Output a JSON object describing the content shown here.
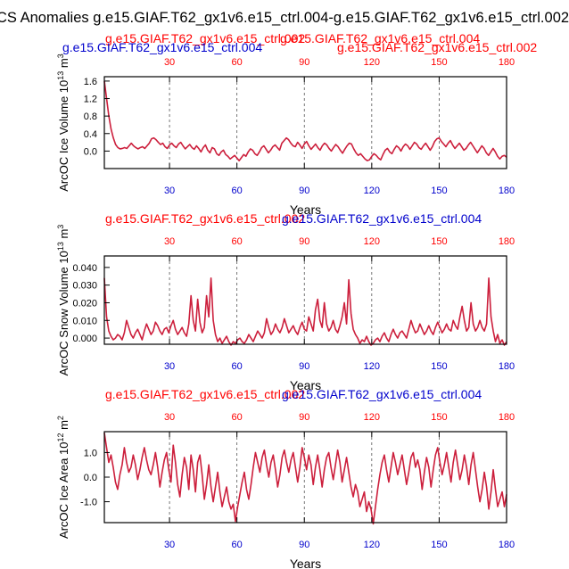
{
  "suptitle": "CS Anomalies g.e15.GIAF.T62_gx1v6.e15_ctrl.004-g.e15.GIAF.T62_gx1v6.e15_ctrl.002",
  "colors": {
    "red": "#ff0000",
    "blue": "#0000cc",
    "line": "#cc1f3c",
    "black": "#000000"
  },
  "chart_data": [
    {
      "type": "line",
      "title_left": "g.e15.GIAF.T62_gx1v6.e15_ctrl.004",
      "title_left_back": "g.e15.GIAF.T62_gx1v6.e15_ctrl.002",
      "title_right": "g.e15.GIAF.T62_gx1v6.e15_ctrl.002",
      "title_right_back": "g.e15.GIAF.T62_gx1v6.e15_ctrl.004",
      "ylabel": "ArcOC Ice Volume 10",
      "ylabel_exp": "13",
      "ylabel_unit": " m",
      "ylabel_unit_exp": "3",
      "xlabel": "Years",
      "xlim": [
        1,
        180
      ],
      "ylim": [
        -0.4,
        1.7
      ],
      "yticks": [
        -0.0,
        0.4,
        0.8,
        1.2,
        1.6
      ],
      "ytick_labels": [
        "0.0",
        "0.4",
        "0.8",
        "1.2",
        "1.6"
      ],
      "xticks": [
        30,
        60,
        90,
        120,
        150,
        180
      ],
      "xtick_labels": [
        "30",
        "60",
        "90",
        "120",
        "150",
        "180"
      ],
      "vlines": [
        30,
        60,
        90,
        120,
        150
      ],
      "top_label_color": "red",
      "bottom_label_color": "blue",
      "series": [
        {
          "name": "ArcOC Ice Volume",
          "values": [
            1.6,
            1.2,
            0.8,
            0.5,
            0.3,
            0.15,
            0.08,
            0.05,
            0.06,
            0.08,
            0.06,
            0.12,
            0.18,
            0.12,
            0.08,
            0.05,
            0.08,
            0.1,
            0.06,
            0.12,
            0.18,
            0.28,
            0.3,
            0.26,
            0.2,
            0.15,
            0.18,
            0.1,
            0.06,
            0.14,
            0.18,
            0.12,
            0.08,
            0.16,
            0.2,
            0.12,
            0.05,
            0.1,
            0.15,
            0.08,
            0.04,
            0.12,
            0.06,
            -0.02,
            0.08,
            0.14,
            0.02,
            -0.04,
            0.08,
            0.05,
            -0.06,
            -0.1,
            -0.02,
            0.02,
            -0.08,
            -0.12,
            -0.18,
            -0.14,
            -0.1,
            -0.16,
            -0.22,
            -0.15,
            -0.08,
            -0.12,
            -0.02,
            0.05,
            0.02,
            -0.06,
            -0.1,
            -0.02,
            0.08,
            0.12,
            0.04,
            -0.04,
            0.02,
            0.1,
            0.14,
            0.08,
            0.02,
            0.18,
            0.24,
            0.3,
            0.26,
            0.18,
            0.12,
            0.1,
            0.2,
            0.14,
            0.06,
            0.16,
            0.22,
            0.12,
            0.04,
            0.1,
            0.16,
            0.08,
            0.02,
            0.12,
            0.18,
            0.14,
            0.06,
            0.0,
            0.08,
            0.15,
            0.1,
            0.02,
            -0.05,
            0.04,
            0.12,
            0.18,
            0.16,
            0.05,
            -0.04,
            -0.1,
            -0.06,
            -0.12,
            -0.18,
            -0.22,
            -0.2,
            -0.12,
            -0.06,
            -0.1,
            -0.16,
            -0.2,
            -0.08,
            0.02,
            0.06,
            -0.02,
            -0.06,
            0.04,
            0.12,
            0.08,
            0.0,
            0.1,
            0.16,
            0.12,
            0.04,
            0.12,
            0.2,
            0.16,
            0.08,
            0.04,
            0.12,
            0.18,
            0.1,
            0.02,
            0.1,
            0.22,
            0.28,
            0.3,
            0.22,
            0.16,
            0.1,
            0.18,
            0.24,
            0.14,
            0.06,
            0.12,
            0.18,
            0.1,
            0.02,
            0.06,
            0.14,
            0.2,
            0.12,
            0.04,
            -0.04,
            0.04,
            0.12,
            0.06,
            -0.04,
            -0.1,
            -0.02,
            0.06,
            -0.02,
            -0.12,
            -0.18,
            -0.12,
            -0.1,
            -0.14
          ]
        }
      ]
    },
    {
      "type": "line",
      "title_left": "g.e15.GIAF.T62_gx1v6.e15_ctrl.002",
      "title_right": "g.e15.GIAF.T62_gx1v6.e15_ctrl.004",
      "ylabel": "ArcOC Snow Volume 10",
      "ylabel_exp": "13",
      "ylabel_unit": " m",
      "ylabel_unit_exp": "3",
      "xlabel": "Years",
      "xlim": [
        1,
        180
      ],
      "ylim": [
        -0.0035,
        0.0465
      ],
      "yticks": [
        0.0,
        0.01,
        0.02,
        0.03,
        0.04
      ],
      "ytick_labels": [
        "0.000",
        "0.010",
        "0.020",
        "0.030",
        "0.040"
      ],
      "xticks": [
        30,
        60,
        90,
        120,
        150,
        180
      ],
      "xtick_labels": [
        "30",
        "60",
        "90",
        "120",
        "150",
        "180"
      ],
      "vlines": [
        30,
        60,
        90,
        120,
        150
      ],
      "top_label_color": "red",
      "bottom_label_color": "blue",
      "series": [
        {
          "name": "ArcOC Snow Volume",
          "values": [
            0.034,
            0.012,
            0.004,
            0.001,
            -0.001,
            0.0,
            0.002,
            0.001,
            -0.001,
            0.003,
            0.01,
            0.006,
            0.002,
            0.0,
            0.003,
            0.005,
            0.002,
            -0.001,
            0.004,
            0.008,
            0.005,
            0.002,
            0.004,
            0.009,
            0.007,
            0.004,
            0.002,
            0.005,
            0.006,
            0.003,
            0.007,
            0.01,
            0.005,
            0.002,
            0.004,
            0.006,
            0.003,
            0.001,
            0.008,
            0.024,
            0.01,
            0.004,
            0.022,
            0.009,
            0.003,
            0.006,
            0.024,
            0.012,
            0.034,
            0.01,
            0.002,
            -0.002,
            0.0,
            -0.003,
            -0.001,
            0.001,
            -0.002,
            -0.004,
            -0.002,
            -0.003,
            -0.001,
            0.0,
            -0.002,
            -0.003,
            -0.001,
            0.002,
            0.0,
            -0.002,
            0.001,
            0.004,
            0.002,
            0.0,
            0.003,
            0.011,
            0.006,
            0.002,
            0.004,
            0.008,
            0.005,
            0.003,
            0.006,
            0.011,
            0.007,
            0.003,
            0.005,
            0.007,
            0.004,
            0.002,
            0.006,
            0.009,
            0.005,
            0.004,
            0.012,
            0.008,
            0.004,
            0.016,
            0.022,
            0.01,
            0.006,
            0.02,
            0.008,
            0.004,
            0.006,
            0.01,
            0.005,
            0.003,
            0.007,
            0.012,
            0.02,
            0.008,
            0.033,
            0.014,
            0.005,
            0.002,
            0.0,
            -0.003,
            -0.001,
            -0.002,
            0.001,
            -0.002,
            -0.004,
            -0.003,
            -0.001,
            0.0,
            -0.002,
            0.001,
            0.003,
            0.0,
            -0.002,
            0.002,
            0.005,
            0.002,
            0.0,
            0.003,
            0.004,
            0.002,
            0.0,
            0.005,
            0.01,
            0.006,
            0.003,
            0.004,
            0.008,
            0.005,
            0.002,
            0.004,
            0.007,
            0.004,
            0.002,
            0.006,
            0.009,
            0.006,
            0.003,
            0.005,
            0.008,
            0.005,
            0.004,
            0.01,
            0.007,
            0.005,
            0.012,
            0.018,
            0.01,
            0.004,
            0.006,
            0.02,
            0.008,
            0.004,
            0.006,
            0.01,
            0.006,
            0.004,
            0.008,
            0.034,
            0.012,
            0.004,
            -0.002,
            0.002,
            -0.003,
            -0.001,
            -0.004,
            -0.002
          ]
        }
      ]
    },
    {
      "type": "line",
      "title_left": "g.e15.GIAF.T62_gx1v6.e15_ctrl.002",
      "title_right": "g.e15.GIAF.T62_gx1v6.e15_ctrl.004",
      "ylabel": "ArcOC Ice Area 10",
      "ylabel_exp": "12",
      "ylabel_unit": " m",
      "ylabel_unit_exp": "2",
      "xlabel": "Years",
      "xlim": [
        1,
        180
      ],
      "ylim": [
        -1.85,
        1.85
      ],
      "yticks": [
        -1.0,
        0.0,
        1.0
      ],
      "ytick_labels": [
        "-1.0",
        "0.0",
        "1.0"
      ],
      "xticks": [
        30,
        60,
        90,
        120,
        150,
        180
      ],
      "xtick_labels": [
        "30",
        "60",
        "90",
        "120",
        "150",
        "180"
      ],
      "vlines": [
        30,
        60,
        90,
        120,
        150
      ],
      "top_label_color": "red",
      "bottom_label_color": "blue",
      "series": [
        {
          "name": "ArcOC Ice Area",
          "values": [
            1.8,
            1.2,
            0.6,
            0.9,
            0.4,
            -0.2,
            -0.5,
            0.1,
            0.5,
            1.2,
            0.6,
            0.2,
            0.4,
            0.9,
            0.5,
            -0.1,
            0.3,
            0.8,
            1.2,
            0.7,
            0.3,
            0.1,
            0.5,
            1.0,
            0.4,
            -0.4,
            0.2,
            0.7,
            1.0,
            0.3,
            -0.2,
            1.3,
            0.6,
            -0.3,
            -0.8,
            0.1,
            0.8,
            0.4,
            -0.5,
            0.9,
            0.3,
            -0.6,
            0.6,
            0.9,
            0.1,
            -0.9,
            -0.3,
            0.5,
            -0.4,
            -1.0,
            -0.4,
            0.2,
            -0.6,
            -1.2,
            -0.8,
            -0.4,
            -1.0,
            -1.3,
            -1.1,
            -1.8,
            -1.2,
            -0.7,
            -0.2,
            0.2,
            -0.5,
            -0.9,
            -0.3,
            0.4,
            1.0,
            0.6,
            0.2,
            0.8,
            1.1,
            0.5,
            0.0,
            0.6,
            0.9,
            0.3,
            -0.4,
            0.1,
            0.8,
            1.1,
            0.6,
            0.2,
            0.7,
            1.0,
            0.4,
            -0.2,
            0.4,
            1.2,
            0.8,
            0.3,
            0.9,
            0.5,
            -0.3,
            0.4,
            0.9,
            0.3,
            -0.4,
            0.3,
            0.8,
            1.0,
            0.4,
            -0.1,
            0.5,
            1.1,
            0.6,
            -0.2,
            0.3,
            0.8,
            0.2,
            -0.4,
            -0.8,
            -0.3,
            -0.6,
            -1.2,
            -0.9,
            -0.6,
            -1.4,
            -1.0,
            -1.3,
            -1.9,
            -1.2,
            -0.5,
            0.1,
            0.6,
            0.9,
            0.3,
            -0.2,
            0.4,
            1.0,
            0.6,
            0.1,
            0.5,
            0.9,
            0.3,
            -0.3,
            0.2,
            0.8,
            1.0,
            0.4,
            0.7,
            0.3,
            -0.5,
            0.2,
            0.8,
            0.4,
            -0.4,
            0.3,
            0.9,
            1.2,
            0.6,
            0.1,
            0.5,
            1.0,
            0.4,
            -0.2,
            0.6,
            1.1,
            0.5,
            -0.1,
            0.3,
            0.9,
            0.4,
            -0.3,
            0.5,
            1.0,
            0.3,
            -0.4,
            -1.0,
            -0.5,
            0.2,
            -0.4,
            -1.3,
            -0.6,
            0.3,
            -0.5,
            -1.2,
            -0.9,
            -0.6,
            -1.2,
            -0.7
          ]
        }
      ]
    }
  ]
}
